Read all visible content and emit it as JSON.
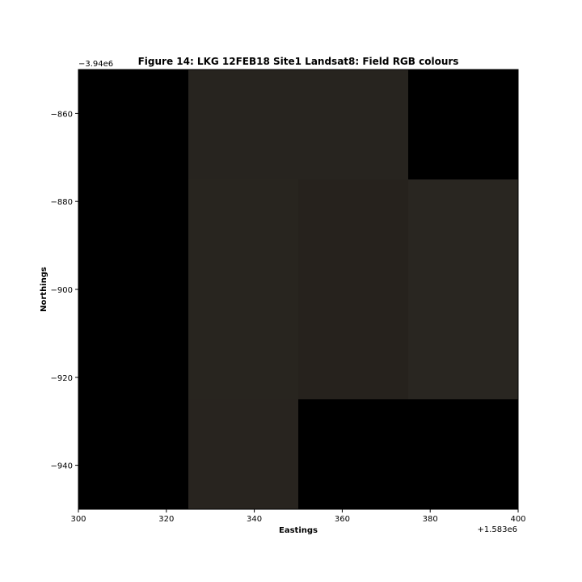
{
  "chart_data": {
    "type": "heatmap",
    "title": "Figure 14: LKG 12FEB18 Site1 Landsat8: Field RGB colours",
    "xlabel": "Eastings",
    "ylabel": "Northings",
    "x_offset_label": "+1.583e6",
    "y_offset_label": "−3.94e6",
    "xlim": [
      300,
      400
    ],
    "ylim": [
      -950,
      -850
    ],
    "x_ticks": [
      300,
      320,
      340,
      360,
      380,
      400
    ],
    "x_tick_labels": [
      "300",
      "320",
      "340",
      "360",
      "380",
      "400"
    ],
    "y_ticks": [
      -860,
      -880,
      -900,
      -920,
      -940
    ],
    "y_tick_labels": [
      "−860",
      "−880",
      "−900",
      "−920",
      "−940"
    ],
    "background_color": "#000000",
    "cells": [
      {
        "x0": 325,
        "x1": 350,
        "y0": -875,
        "y1": -850,
        "color": "#27241f"
      },
      {
        "x0": 350,
        "x1": 375,
        "y0": -875,
        "y1": -850,
        "color": "#27241f"
      },
      {
        "x0": 325,
        "x1": 350,
        "y0": -925,
        "y1": -875,
        "color": "#28251f"
      },
      {
        "x0": 350,
        "x1": 375,
        "y0": -925,
        "y1": -875,
        "color": "#26221d"
      },
      {
        "x0": 375,
        "x1": 400,
        "y0": -925,
        "y1": -875,
        "color": "#292621"
      },
      {
        "x0": 325,
        "x1": 350,
        "y0": -950,
        "y1": -925,
        "color": "#28241f"
      }
    ]
  }
}
